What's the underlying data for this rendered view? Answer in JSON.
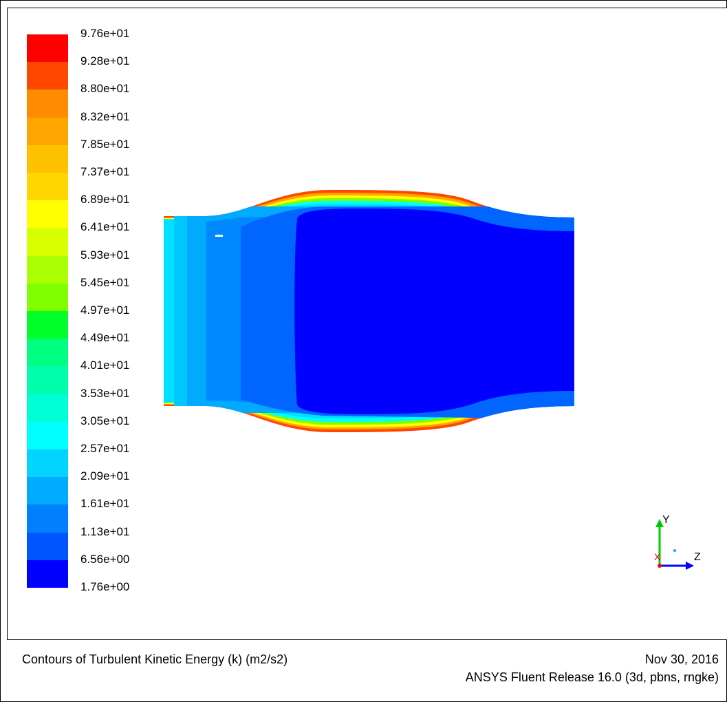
{
  "title": "Contours of Turbulent Kinetic Energy (k) (m2/s2)",
  "date": "Nov 30, 2016",
  "release": "ANSYS Fluent Release 16.0 (3d, pbns, rngke)",
  "legend": {
    "labels": [
      "9.76e+01",
      "9.28e+01",
      "8.80e+01",
      "8.32e+01",
      "7.85e+01",
      "7.37e+01",
      "6.89e+01",
      "6.41e+01",
      "5.93e+01",
      "5.45e+01",
      "4.97e+01",
      "4.49e+01",
      "4.01e+01",
      "3.53e+01",
      "3.05e+01",
      "2.57e+01",
      "2.09e+01",
      "1.61e+01",
      "1.13e+01",
      "6.56e+00",
      "1.76e+00"
    ],
    "colors": [
      "#ff0000",
      "#ff4700",
      "#ff8c00",
      "#ffa500",
      "#ffc000",
      "#ffd700",
      "#ffff00",
      "#d8ff00",
      "#aaff00",
      "#7fff00",
      "#00ff2a",
      "#00ff80",
      "#00ffaa",
      "#00ffd4",
      "#00ffff",
      "#00d4ff",
      "#00aaff",
      "#0080ff",
      "#0055ff",
      "#0000ff"
    ]
  },
  "axes": {
    "x_label": "X",
    "y_label": "Y",
    "z_label": "Z",
    "x_color": "#ff0000",
    "y_color": "#00c800",
    "z_color": "#0000ff"
  },
  "contour_colors": {
    "background_domain": "#0000ff",
    "inlet_band_1": "#00e0ff",
    "inlet_band_2": "#00c8ff",
    "inlet_band_3": "#00aaff",
    "inlet_band_4": "#0088ff",
    "inlet_band_5": "#0066ff",
    "wall_1": "#00ffff",
    "wall_2": "#7fff00",
    "wall_3": "#ffff00",
    "wall_4": "#ffa500",
    "wall_5": "#ff4700"
  }
}
